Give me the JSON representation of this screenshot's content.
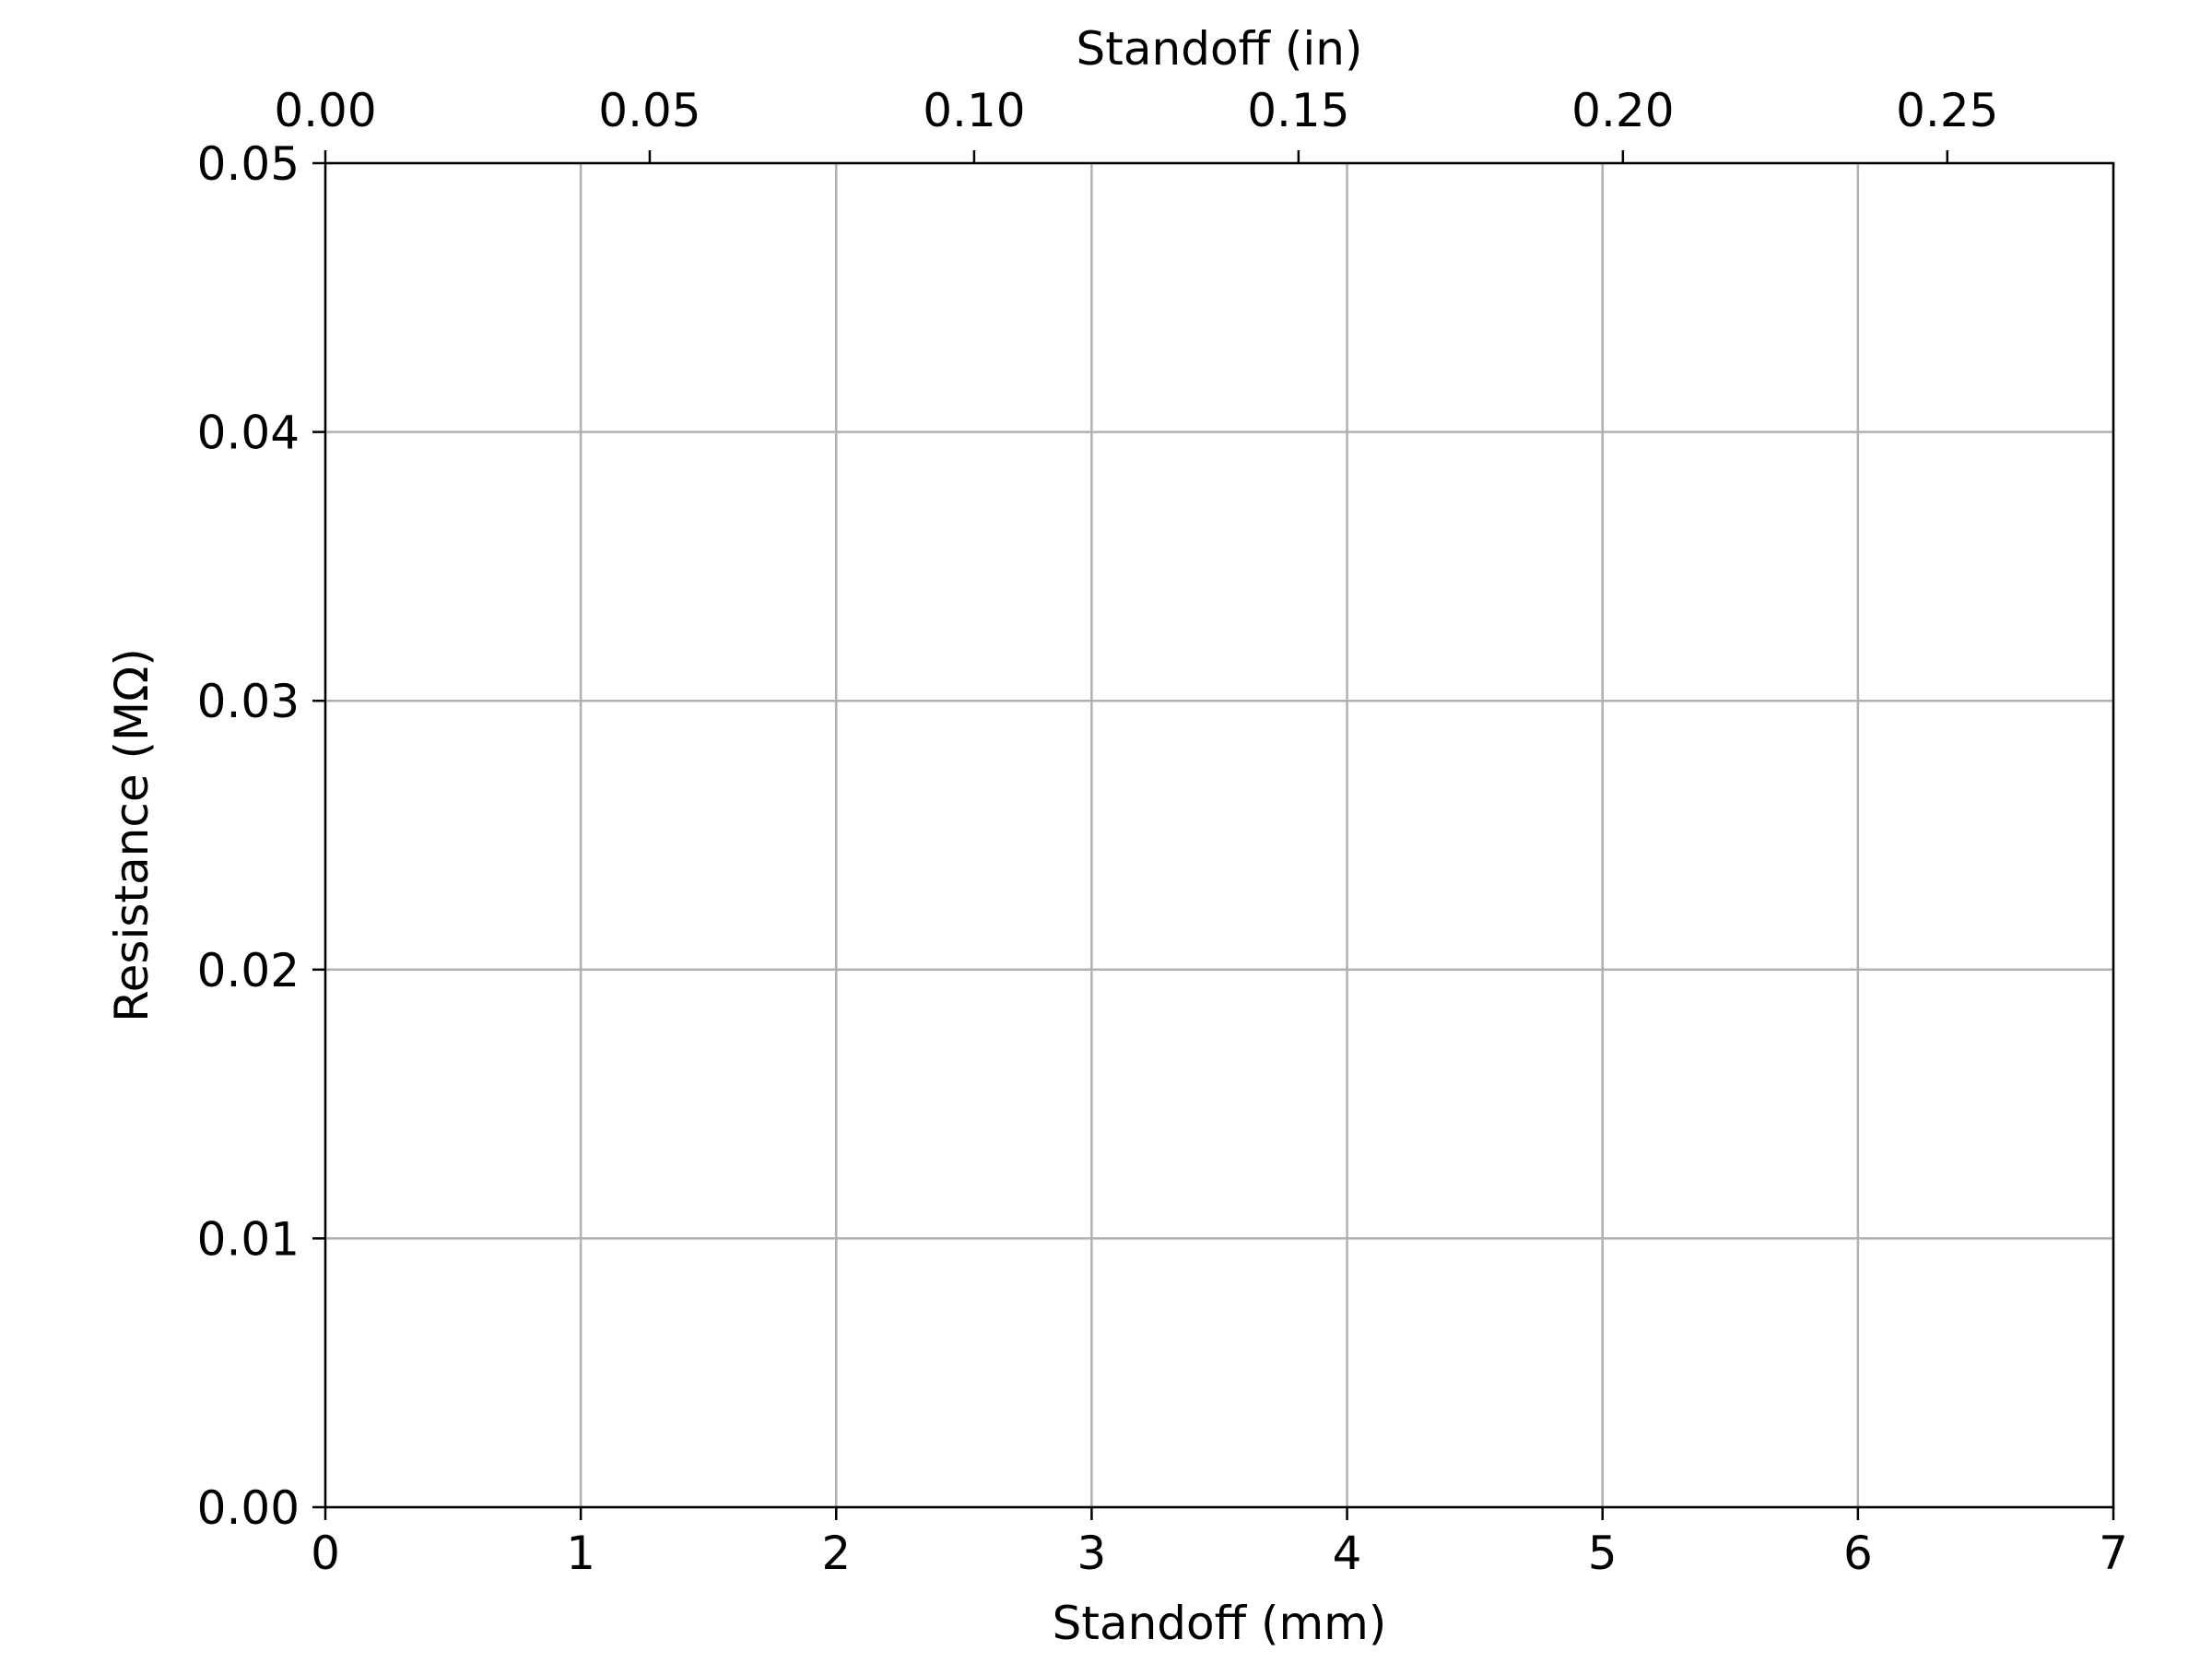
{
  "chart_data": {
    "type": "line",
    "title": "",
    "xlabel": "Standoff (mm)",
    "ylabel": "Resistance (MΩ)",
    "secondary_xlabel": "Standoff (in)",
    "xlim": [
      0,
      7
    ],
    "ylim": [
      0,
      0.05
    ],
    "secondary_xlim": [
      0,
      0.2756
    ],
    "x_ticks": [
      0,
      1,
      2,
      3,
      4,
      5,
      6,
      7
    ],
    "x_tick_labels": [
      "0",
      "1",
      "2",
      "3",
      "4",
      "5",
      "6",
      "7"
    ],
    "y_ticks": [
      0,
      0.01,
      0.02,
      0.03,
      0.04,
      0.05
    ],
    "y_tick_labels": [
      "0.00",
      "0.01",
      "0.02",
      "0.03",
      "0.04",
      "0.05"
    ],
    "secondary_x_ticks": [
      0,
      0.05,
      0.1,
      0.15,
      0.2,
      0.25
    ],
    "secondary_x_tick_labels": [
      "0.00",
      "0.05",
      "0.10",
      "0.15",
      "0.20",
      "0.25"
    ],
    "grid": true,
    "series": [],
    "colors": {
      "grid": "#b0b0b0",
      "axes": "#000000",
      "background": "#ffffff"
    }
  }
}
